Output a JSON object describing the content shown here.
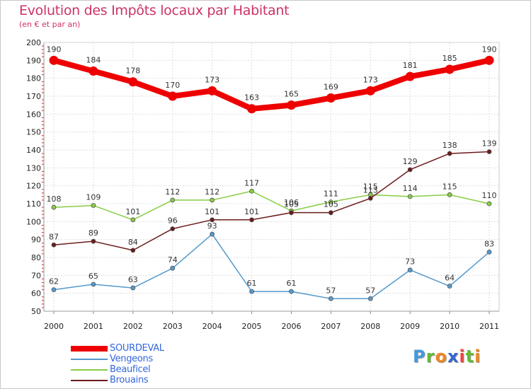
{
  "chart_data": {
    "type": "line",
    "title": "Evolution des Impôts locaux par Habitant",
    "subtitle": "(en € et par an)",
    "x": [
      "2000",
      "2001",
      "2002",
      "2003",
      "2004",
      "2005",
      "2006",
      "2007",
      "2008",
      "2009",
      "2010",
      "2011"
    ],
    "ylim": [
      50,
      200
    ],
    "yticks": [
      50,
      60,
      70,
      80,
      90,
      100,
      110,
      120,
      130,
      140,
      150,
      160,
      170,
      180,
      190,
      200
    ],
    "grid": true,
    "legend_position": "bottom-left",
    "series": [
      {
        "name": "SOURDEVAL",
        "color": "#ee0000",
        "values": [
          190,
          184,
          178,
          170,
          173,
          163,
          165,
          169,
          173,
          181,
          185,
          190
        ]
      },
      {
        "name": "Vengeons",
        "color": "#5599cc",
        "values": [
          62,
          65,
          63,
          74,
          93,
          61,
          61,
          57,
          57,
          73,
          64,
          83
        ]
      },
      {
        "name": "Beauficel",
        "color": "#88cc44",
        "values": [
          108,
          109,
          101,
          112,
          112,
          117,
          106,
          111,
          115,
          114,
          115,
          110
        ]
      },
      {
        "name": "Brouains",
        "color": "#6b1a1a",
        "values": [
          87,
          89,
          84,
          96,
          101,
          101,
          105,
          105,
          113,
          129,
          138,
          139
        ]
      }
    ]
  },
  "brand": {
    "letters": [
      {
        "char": "P",
        "color": "#4499dd"
      },
      {
        "char": "r",
        "color": "#66bb33"
      },
      {
        "char": "o",
        "color": "#ee8822"
      },
      {
        "char": "x",
        "color": "#3366cc"
      },
      {
        "char": "i",
        "color": "#ee4444"
      },
      {
        "char": "t",
        "color": "#66bb33"
      },
      {
        "char": "i",
        "color": "#ee8822"
      }
    ]
  }
}
